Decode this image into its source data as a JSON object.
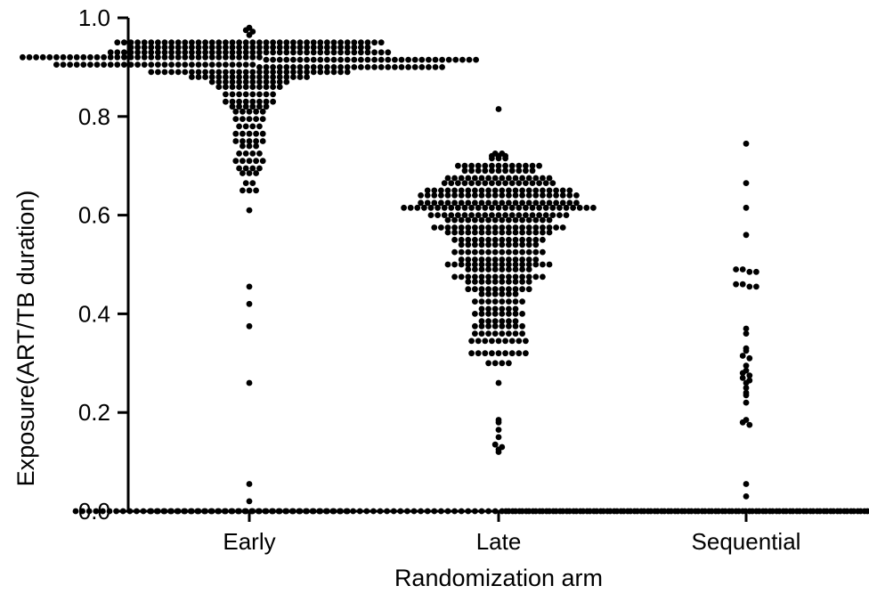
{
  "chart_data": {
    "type": "scatter",
    "subtype": "beeswarm",
    "title": "",
    "xlabel": "Randomization arm",
    "ylabel": "Exposure(ART/TB duration)",
    "ylim": [
      0.0,
      1.0
    ],
    "yticks": [
      "0.0",
      "0.2",
      "0.4",
      "0.6",
      "0.8",
      "1.0"
    ],
    "ytick_values": [
      0.0,
      0.2,
      0.4,
      0.6,
      0.8,
      1.0
    ],
    "categories": [
      "Early",
      "Late",
      "Sequential"
    ],
    "grid": false,
    "legend": "none",
    "marker_color": "#000000",
    "series": [
      {
        "category": "Early",
        "values": [
          0.98,
          0.975,
          0.972,
          0.965,
          0.95,
          0.95,
          0.95,
          0.95,
          0.95,
          0.95,
          0.95,
          0.95,
          0.95,
          0.95,
          0.95,
          0.95,
          0.95,
          0.95,
          0.95,
          0.95,
          0.95,
          0.95,
          0.95,
          0.95,
          0.95,
          0.95,
          0.95,
          0.95,
          0.95,
          0.95,
          0.95,
          0.95,
          0.95,
          0.95,
          0.95,
          0.95,
          0.95,
          0.95,
          0.95,
          0.95,
          0.95,
          0.95,
          0.95,
          0.95,
          0.94,
          0.94,
          0.94,
          0.94,
          0.94,
          0.94,
          0.94,
          0.94,
          0.94,
          0.94,
          0.94,
          0.94,
          0.94,
          0.94,
          0.94,
          0.94,
          0.94,
          0.94,
          0.94,
          0.94,
          0.94,
          0.94,
          0.94,
          0.94,
          0.94,
          0.94,
          0.94,
          0.94,
          0.94,
          0.94,
          0.94,
          0.94,
          0.94,
          0.94,
          0.94,
          0.94,
          0.93,
          0.93,
          0.93,
          0.93,
          0.93,
          0.93,
          0.93,
          0.93,
          0.93,
          0.93,
          0.93,
          0.93,
          0.93,
          0.93,
          0.93,
          0.93,
          0.93,
          0.93,
          0.93,
          0.93,
          0.93,
          0.93,
          0.93,
          0.93,
          0.93,
          0.93,
          0.93,
          0.93,
          0.93,
          0.93,
          0.93,
          0.93,
          0.93,
          0.93,
          0.93,
          0.93,
          0.93,
          0.93,
          0.93,
          0.93,
          0.93,
          0.93,
          0.92,
          0.92,
          0.92,
          0.92,
          0.92,
          0.92,
          0.92,
          0.92,
          0.92,
          0.92,
          0.92,
          0.92,
          0.92,
          0.92,
          0.92,
          0.92,
          0.92,
          0.92,
          0.92,
          0.92,
          0.92,
          0.92,
          0.92,
          0.92,
          0.92,
          0.92,
          0.92,
          0.92,
          0.92,
          0.92,
          0.92,
          0.92,
          0.92,
          0.92,
          0.92,
          0.92,
          0.915,
          0.915,
          0.915,
          0.915,
          0.915,
          0.915,
          0.915,
          0.915,
          0.915,
          0.915,
          0.915,
          0.915,
          0.915,
          0.915,
          0.915,
          0.915,
          0.915,
          0.915,
          0.915,
          0.915,
          0.915,
          0.915,
          0.915,
          0.915,
          0.915,
          0.915,
          0.915,
          0.915,
          0.915,
          0.915,
          0.915,
          0.915,
          0.905,
          0.905,
          0.905,
          0.905,
          0.905,
          0.905,
          0.905,
          0.905,
          0.905,
          0.905,
          0.905,
          0.905,
          0.905,
          0.905,
          0.905,
          0.905,
          0.905,
          0.905,
          0.905,
          0.905,
          0.905,
          0.905,
          0.905,
          0.905,
          0.905,
          0.905,
          0.905,
          0.905,
          0.905,
          0.905,
          0.9,
          0.9,
          0.9,
          0.9,
          0.9,
          0.9,
          0.9,
          0.9,
          0.9,
          0.9,
          0.9,
          0.9,
          0.9,
          0.9,
          0.9,
          0.9,
          0.9,
          0.9,
          0.9,
          0.9,
          0.9,
          0.9,
          0.9,
          0.9,
          0.9,
          0.9,
          0.9,
          0.9,
          0.89,
          0.89,
          0.89,
          0.89,
          0.89,
          0.89,
          0.89,
          0.89,
          0.89,
          0.89,
          0.89,
          0.89,
          0.89,
          0.89,
          0.89,
          0.89,
          0.89,
          0.89,
          0.89,
          0.89,
          0.89,
          0.89,
          0.89,
          0.89,
          0.89,
          0.89,
          0.89,
          0.89,
          0.89,
          0.89,
          0.88,
          0.88,
          0.88,
          0.88,
          0.88,
          0.88,
          0.88,
          0.88,
          0.88,
          0.88,
          0.88,
          0.88,
          0.88,
          0.88,
          0.88,
          0.88,
          0.88,
          0.88,
          0.87,
          0.87,
          0.87,
          0.87,
          0.87,
          0.87,
          0.87,
          0.87,
          0.87,
          0.87,
          0.87,
          0.87,
          0.86,
          0.86,
          0.86,
          0.86,
          0.86,
          0.86,
          0.86,
          0.86,
          0.86,
          0.86,
          0.845,
          0.845,
          0.845,
          0.845,
          0.845,
          0.845,
          0.845,
          0.845,
          0.83,
          0.83,
          0.83,
          0.83,
          0.83,
          0.83,
          0.83,
          0.83,
          0.82,
          0.82,
          0.82,
          0.82,
          0.82,
          0.82,
          0.81,
          0.81,
          0.81,
          0.81,
          0.81,
          0.795,
          0.795,
          0.795,
          0.795,
          0.795,
          0.78,
          0.78,
          0.78,
          0.78,
          0.765,
          0.765,
          0.765,
          0.765,
          0.765,
          0.75,
          0.75,
          0.75,
          0.75,
          0.75,
          0.74,
          0.74,
          0.74,
          0.725,
          0.725,
          0.725,
          0.725,
          0.71,
          0.71,
          0.71,
          0.71,
          0.71,
          0.695,
          0.695,
          0.695,
          0.695,
          0.685,
          0.685,
          0.685,
          0.665,
          0.665,
          0.65,
          0.65,
          0.65,
          0.61,
          0.455,
          0.42,
          0.375,
          0.26,
          0.055,
          0.02,
          0,
          0,
          0,
          0,
          0,
          0,
          0,
          0,
          0,
          0,
          0,
          0,
          0,
          0,
          0,
          0,
          0,
          0,
          0,
          0,
          0,
          0,
          0,
          0,
          0,
          0,
          0,
          0,
          0,
          0
        ]
      },
      {
        "category": "Late",
        "values": [
          0.815,
          0.725,
          0.725,
          0.72,
          0.72,
          0.72,
          0.715,
          0.715,
          0.715,
          0.7,
          0.7,
          0.7,
          0.7,
          0.7,
          0.7,
          0.7,
          0.7,
          0.7,
          0.7,
          0.7,
          0.7,
          0.7,
          0.69,
          0.69,
          0.69,
          0.69,
          0.69,
          0.69,
          0.69,
          0.69,
          0.69,
          0.69,
          0.69,
          0.675,
          0.675,
          0.675,
          0.675,
          0.675,
          0.675,
          0.675,
          0.675,
          0.675,
          0.675,
          0.675,
          0.675,
          0.675,
          0.675,
          0.675,
          0.675,
          0.665,
          0.665,
          0.665,
          0.665,
          0.665,
          0.665,
          0.665,
          0.665,
          0.665,
          0.665,
          0.665,
          0.665,
          0.665,
          0.665,
          0.665,
          0.665,
          0.665,
          0.65,
          0.65,
          0.65,
          0.65,
          0.65,
          0.65,
          0.65,
          0.65,
          0.65,
          0.65,
          0.65,
          0.65,
          0.65,
          0.65,
          0.65,
          0.65,
          0.65,
          0.65,
          0.65,
          0.65,
          0.65,
          0.65,
          0.64,
          0.64,
          0.64,
          0.64,
          0.64,
          0.64,
          0.64,
          0.64,
          0.64,
          0.64,
          0.64,
          0.64,
          0.64,
          0.64,
          0.64,
          0.64,
          0.64,
          0.64,
          0.64,
          0.64,
          0.64,
          0.64,
          0.64,
          0.64,
          0.625,
          0.625,
          0.625,
          0.625,
          0.625,
          0.625,
          0.625,
          0.625,
          0.625,
          0.625,
          0.625,
          0.625,
          0.625,
          0.625,
          0.625,
          0.625,
          0.625,
          0.625,
          0.625,
          0.625,
          0.625,
          0.625,
          0.625,
          0.625,
          0.615,
          0.615,
          0.615,
          0.615,
          0.615,
          0.615,
          0.615,
          0.615,
          0.615,
          0.615,
          0.615,
          0.615,
          0.615,
          0.615,
          0.615,
          0.615,
          0.615,
          0.615,
          0.615,
          0.615,
          0.615,
          0.615,
          0.615,
          0.615,
          0.615,
          0.615,
          0.615,
          0.615,
          0.615,
          0.6,
          0.6,
          0.6,
          0.6,
          0.6,
          0.6,
          0.6,
          0.6,
          0.6,
          0.6,
          0.6,
          0.6,
          0.6,
          0.6,
          0.6,
          0.6,
          0.6,
          0.6,
          0.6,
          0.6,
          0.6,
          0.59,
          0.59,
          0.59,
          0.59,
          0.59,
          0.59,
          0.59,
          0.59,
          0.59,
          0.59,
          0.59,
          0.59,
          0.59,
          0.59,
          0.59,
          0.59,
          0.575,
          0.575,
          0.575,
          0.575,
          0.575,
          0.575,
          0.575,
          0.575,
          0.575,
          0.575,
          0.575,
          0.575,
          0.575,
          0.575,
          0.575,
          0.575,
          0.575,
          0.575,
          0.575,
          0.575,
          0.565,
          0.565,
          0.565,
          0.565,
          0.565,
          0.565,
          0.565,
          0.565,
          0.565,
          0.565,
          0.565,
          0.565,
          0.565,
          0.565,
          0.565,
          0.565,
          0.55,
          0.55,
          0.55,
          0.55,
          0.55,
          0.55,
          0.55,
          0.55,
          0.55,
          0.55,
          0.55,
          0.55,
          0.55,
          0.55,
          0.54,
          0.54,
          0.54,
          0.54,
          0.54,
          0.54,
          0.54,
          0.54,
          0.54,
          0.54,
          0.54,
          0.54,
          0.525,
          0.525,
          0.525,
          0.525,
          0.525,
          0.525,
          0.525,
          0.525,
          0.525,
          0.525,
          0.525,
          0.525,
          0.525,
          0.525,
          0.51,
          0.51,
          0.51,
          0.51,
          0.51,
          0.51,
          0.51,
          0.51,
          0.51,
          0.51,
          0.51,
          0.51,
          0.5,
          0.5,
          0.5,
          0.5,
          0.5,
          0.5,
          0.5,
          0.5,
          0.5,
          0.5,
          0.5,
          0.5,
          0.5,
          0.5,
          0.5,
          0.5,
          0.49,
          0.49,
          0.49,
          0.49,
          0.49,
          0.49,
          0.49,
          0.49,
          0.49,
          0.49,
          0.475,
          0.475,
          0.475,
          0.475,
          0.475,
          0.475,
          0.475,
          0.475,
          0.475,
          0.475,
          0.475,
          0.475,
          0.475,
          0.475,
          0.465,
          0.465,
          0.465,
          0.465,
          0.465,
          0.465,
          0.465,
          0.465,
          0.465,
          0.465,
          0.45,
          0.45,
          0.45,
          0.45,
          0.45,
          0.45,
          0.45,
          0.45,
          0.45,
          0.45,
          0.44,
          0.44,
          0.44,
          0.44,
          0.44,
          0.44,
          0.425,
          0.425,
          0.425,
          0.425,
          0.425,
          0.425,
          0.425,
          0.425,
          0.41,
          0.41,
          0.41,
          0.41,
          0.41,
          0.41,
          0.4,
          0.4,
          0.4,
          0.4,
          0.4,
          0.4,
          0.4,
          0.4,
          0.385,
          0.385,
          0.385,
          0.385,
          0.385,
          0.385,
          0.375,
          0.375,
          0.375,
          0.375,
          0.375,
          0.375,
          0.375,
          0.375,
          0.36,
          0.36,
          0.36,
          0.36,
          0.36,
          0.36,
          0.36,
          0.36,
          0.345,
          0.345,
          0.345,
          0.345,
          0.345,
          0.345,
          0.345,
          0.345,
          0.345,
          0.32,
          0.32,
          0.32,
          0.32,
          0.32,
          0.32,
          0.32,
          0.32,
          0.32,
          0.3,
          0.3,
          0.3,
          0.3,
          0.26,
          0.185,
          0.18,
          0.165,
          0.15,
          0.135,
          0.13,
          0.125,
          0.12,
          0,
          0,
          0,
          0,
          0,
          0,
          0,
          0,
          0,
          0,
          0,
          0,
          0,
          0,
          0,
          0,
          0,
          0,
          0,
          0,
          0,
          0,
          0,
          0,
          0,
          0,
          0,
          0,
          0,
          0,
          0,
          0,
          0,
          0,
          0,
          0,
          0,
          0,
          0,
          0,
          0,
          0,
          0,
          0,
          0,
          0,
          0,
          0,
          0,
          0,
          0,
          0,
          0,
          0,
          0,
          0,
          0,
          0,
          0,
          0,
          0,
          0,
          0,
          0,
          0,
          0,
          0,
          0,
          0,
          0,
          0,
          0,
          0,
          0,
          0,
          0,
          0,
          0,
          0,
          0,
          0,
          0,
          0,
          0,
          0,
          0,
          0,
          0,
          0,
          0,
          0,
          0,
          0,
          0,
          0,
          0,
          0,
          0,
          0,
          0,
          0,
          0,
          0,
          0,
          0,
          0,
          0,
          0,
          0,
          0,
          0,
          0,
          0,
          0,
          0,
          0,
          0,
          0,
          0,
          0,
          0,
          0,
          0,
          0,
          0,
          0
        ]
      },
      {
        "category": "Sequential",
        "values": [
          0.745,
          0.665,
          0.615,
          0.56,
          0.49,
          0.49,
          0.485,
          0.485,
          0.46,
          0.46,
          0.455,
          0.455,
          0.37,
          0.36,
          0.33,
          0.325,
          0.315,
          0.31,
          0.295,
          0.285,
          0.28,
          0.275,
          0.27,
          0.265,
          0.26,
          0.25,
          0.24,
          0.235,
          0.22,
          0.185,
          0.18,
          0.175,
          0.055,
          0.03,
          0,
          0,
          0,
          0,
          0,
          0,
          0,
          0,
          0,
          0,
          0,
          0,
          0,
          0,
          0,
          0,
          0,
          0,
          0,
          0,
          0,
          0,
          0,
          0,
          0,
          0,
          0,
          0,
          0,
          0,
          0,
          0,
          0,
          0,
          0,
          0,
          0,
          0,
          0,
          0,
          0,
          0,
          0,
          0,
          0,
          0,
          0,
          0,
          0,
          0,
          0,
          0,
          0,
          0,
          0,
          0,
          0,
          0,
          0,
          0,
          0,
          0,
          0,
          0,
          0,
          0,
          0,
          0,
          0,
          0,
          0,
          0
        ]
      }
    ]
  }
}
